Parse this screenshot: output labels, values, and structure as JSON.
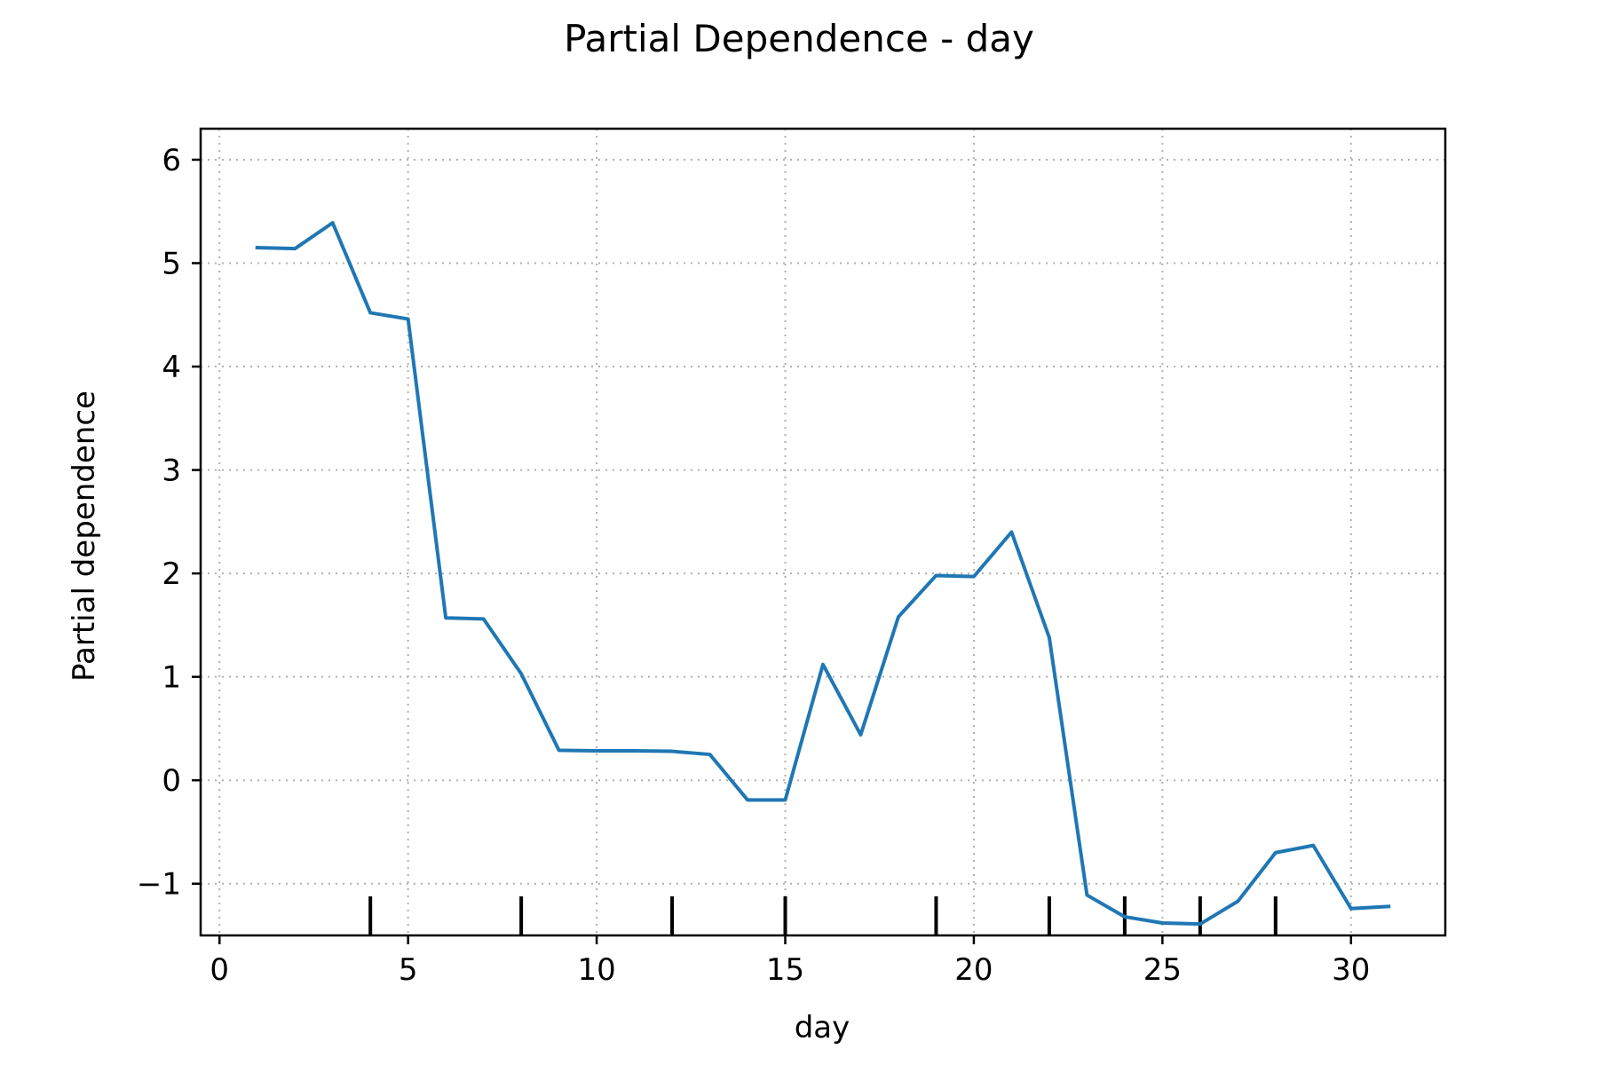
{
  "chart_data": {
    "type": "line",
    "title": "Partial Dependence - day",
    "xlabel": "day",
    "ylabel": "Partial dependence",
    "xlim": [
      -0.5,
      32.5
    ],
    "ylim": [
      -1.5,
      6.3
    ],
    "x_ticks": [
      0,
      5,
      10,
      15,
      20,
      25,
      30
    ],
    "y_ticks": [
      -1,
      0,
      1,
      2,
      3,
      4,
      5,
      6
    ],
    "x_tick_labels": [
      "0",
      "5",
      "10",
      "15",
      "20",
      "25",
      "30"
    ],
    "y_tick_labels": [
      "−1",
      "0",
      "1",
      "2",
      "3",
      "4",
      "5",
      "6"
    ],
    "grid": true,
    "series": [
      {
        "color": "#1f77b4",
        "x": [
          1,
          2,
          3,
          4,
          5,
          6,
          7,
          8,
          9,
          10,
          11,
          12,
          13,
          14,
          15,
          16,
          17,
          18,
          19,
          20,
          21,
          22,
          23,
          24,
          25,
          26,
          27,
          28,
          29,
          30,
          31
        ],
        "y": [
          5.15,
          5.14,
          5.39,
          4.52,
          4.46,
          1.57,
          1.56,
          1.03,
          0.29,
          0.285,
          0.285,
          0.28,
          0.25,
          -0.19,
          -0.19,
          1.12,
          0.44,
          1.58,
          1.98,
          1.97,
          2.4,
          1.38,
          -1.11,
          -1.32,
          -1.38,
          -1.39,
          -1.17,
          -0.7,
          -0.63,
          -1.24,
          -1.22
        ]
      }
    ],
    "rug_x": [
      4,
      8,
      12,
      15,
      19,
      22,
      24,
      26,
      28
    ]
  }
}
